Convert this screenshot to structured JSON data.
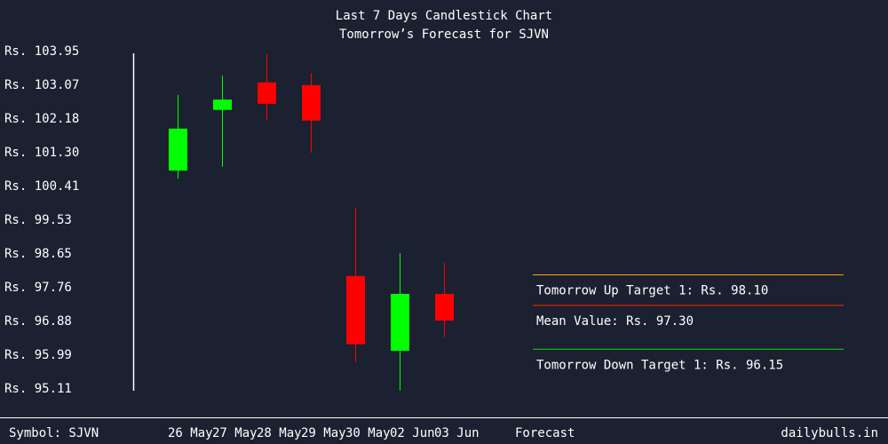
{
  "chart_data": {
    "type": "candlestick",
    "title": "Last 7 Days Candlestick Chart",
    "subtitle": "Tomorrow’s Forecast for SJVN",
    "categories": [
      "26 May",
      "27 May",
      "28 May",
      "29 May",
      "30 May",
      "02 Jun",
      "03 Jun"
    ],
    "forecast_label": "Forecast",
    "open": [
      100.83,
      102.42,
      103.14,
      103.07,
      98.07,
      96.11,
      97.6
    ],
    "high": [
      102.81,
      103.32,
      103.9,
      103.39,
      99.86,
      98.67,
      98.42
    ],
    "low": [
      100.62,
      100.93,
      102.16,
      101.3,
      95.81,
      95.07,
      96.46
    ],
    "close": [
      101.93,
      102.69,
      102.58,
      102.14,
      96.28,
      97.6,
      96.9
    ],
    "up_color": "#00ff00",
    "down_color": "#ff0000",
    "ylim": [
      95.11,
      103.95
    ],
    "yticks": [
      {
        "value": 103.95,
        "label": "Rs. 103.95"
      },
      {
        "value": 103.07,
        "label": "Rs. 103.07"
      },
      {
        "value": 102.18,
        "label": "Rs. 102.18"
      },
      {
        "value": 101.3,
        "label": "Rs. 101.30"
      },
      {
        "value": 100.41,
        "label": "Rs. 100.41"
      },
      {
        "value": 99.53,
        "label": "Rs. 99.53"
      },
      {
        "value": 98.65,
        "label": "Rs. 98.65"
      },
      {
        "value": 97.76,
        "label": "Rs. 97.76"
      },
      {
        "value": 96.88,
        "label": "Rs. 96.88"
      },
      {
        "value": 95.99,
        "label": "Rs. 95.99"
      },
      {
        "value": 95.11,
        "label": "Rs. 95.11"
      }
    ],
    "targets": [
      {
        "value": 98.1,
        "label": "Tomorrow Up Target 1: Rs. 98.10",
        "color": "#ffa500"
      },
      {
        "value": 97.3,
        "label": "Mean Value: Rs. 97.30",
        "color": "#ff2a00"
      },
      {
        "value": 96.15,
        "label": "Tomorrow Down Target 1: Rs. 96.15",
        "color": "#00e000"
      }
    ],
    "symbol": "Symbol: SJVN",
    "source": "dailybulls.in"
  }
}
